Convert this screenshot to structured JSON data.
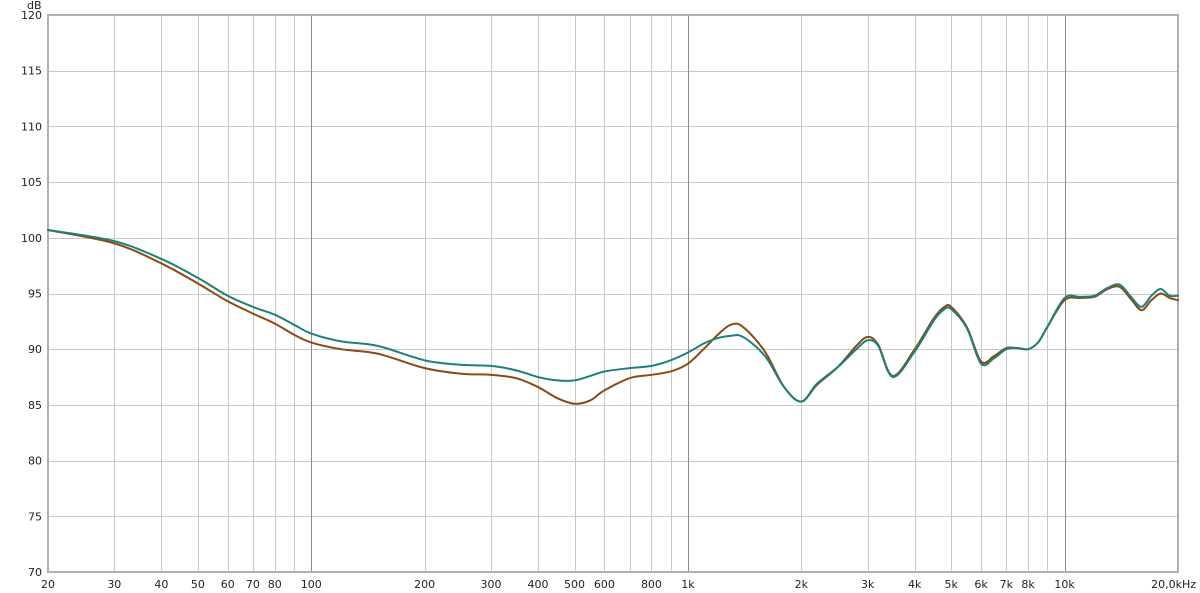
{
  "chart_data": {
    "type": "line",
    "title": "",
    "xlabel": "",
    "ylabel": "dB",
    "x_scale": "log",
    "xlim": [
      20,
      20000
    ],
    "ylim": [
      70,
      120
    ],
    "grid": true,
    "legend": "none",
    "y_ticks": [
      {
        "value": 70,
        "label": "70"
      },
      {
        "value": 75,
        "label": "75"
      },
      {
        "value": 80,
        "label": "80"
      },
      {
        "value": 85,
        "label": "85"
      },
      {
        "value": 90,
        "label": "90"
      },
      {
        "value": 95,
        "label": "95"
      },
      {
        "value": 100,
        "label": "100"
      },
      {
        "value": 105,
        "label": "105"
      },
      {
        "value": 110,
        "label": "110"
      },
      {
        "value": 115,
        "label": "115"
      },
      {
        "value": 120,
        "label": "120"
      }
    ],
    "x_ticks": [
      {
        "value": 20,
        "label": "20"
      },
      {
        "value": 30,
        "label": "30"
      },
      {
        "value": 40,
        "label": "40"
      },
      {
        "value": 50,
        "label": "50"
      },
      {
        "value": 60,
        "label": "60"
      },
      {
        "value": 70,
        "label": "70"
      },
      {
        "value": 80,
        "label": "80"
      },
      {
        "value": 100,
        "label": "100"
      },
      {
        "value": 200,
        "label": "200"
      },
      {
        "value": 300,
        "label": "300"
      },
      {
        "value": 400,
        "label": "400"
      },
      {
        "value": 500,
        "label": "500"
      },
      {
        "value": 600,
        "label": "600"
      },
      {
        "value": 800,
        "label": "800"
      },
      {
        "value": 1000,
        "label": "1k"
      },
      {
        "value": 2000,
        "label": "2k"
      },
      {
        "value": 3000,
        "label": "3k"
      },
      {
        "value": 4000,
        "label": "4k"
      },
      {
        "value": 5000,
        "label": "5k"
      },
      {
        "value": 6000,
        "label": "6k"
      },
      {
        "value": 7000,
        "label": "7k"
      },
      {
        "value": 8000,
        "label": "8k"
      },
      {
        "value": 10000,
        "label": "10k"
      },
      {
        "value": 20000,
        "label": "20,0kHz"
      }
    ],
    "minor_grid_x": [
      20,
      30,
      40,
      50,
      60,
      70,
      80,
      90,
      200,
      300,
      400,
      500,
      600,
      700,
      800,
      900,
      2000,
      3000,
      4000,
      5000,
      6000,
      7000,
      8000,
      9000,
      20000
    ],
    "major_grid_x": [
      100,
      1000,
      10000
    ],
    "series": [
      {
        "color": "#8b4a12",
        "x": [
          20,
          30,
          40,
          50,
          60,
          70,
          80,
          90,
          100,
          120,
          150,
          200,
          250,
          300,
          350,
          400,
          450,
          500,
          550,
          600,
          700,
          800,
          900,
          1000,
          1100,
          1200,
          1300,
          1400,
          1600,
          1800,
          2000,
          2200,
          2500,
          2800,
          3000,
          3200,
          3500,
          4000,
          4500,
          4800,
          5000,
          5500,
          6000,
          6500,
          7000,
          7500,
          8000,
          8500,
          9000,
          10000,
          11000,
          12000,
          13000,
          14000,
          15000,
          16000,
          17000,
          18000,
          19000,
          20000
        ],
        "y": [
          100.7,
          99.5,
          97.7,
          95.9,
          94.3,
          93.2,
          92.3,
          91.3,
          90.6,
          90.0,
          89.6,
          88.3,
          87.8,
          87.7,
          87.4,
          86.6,
          85.6,
          85.1,
          85.4,
          86.3,
          87.4,
          87.7,
          88.0,
          88.7,
          90.0,
          91.3,
          92.2,
          92.0,
          89.8,
          86.6,
          85.3,
          86.8,
          88.4,
          90.3,
          91.1,
          90.4,
          87.6,
          90.0,
          92.8,
          93.8,
          93.8,
          92.0,
          88.9,
          89.4,
          90.1,
          90.1,
          90.0,
          90.6,
          92.0,
          94.4,
          94.6,
          94.7,
          95.4,
          95.6,
          94.5,
          93.5,
          94.4,
          95.0,
          94.6,
          94.4
        ]
      },
      {
        "color": "#1f7f7a",
        "x": [
          20,
          30,
          40,
          50,
          60,
          70,
          80,
          90,
          100,
          120,
          150,
          200,
          250,
          300,
          350,
          400,
          450,
          500,
          550,
          600,
          700,
          800,
          900,
          1000,
          1100,
          1200,
          1300,
          1400,
          1600,
          1800,
          2000,
          2200,
          2500,
          2800,
          3000,
          3200,
          3500,
          4000,
          4500,
          4800,
          5000,
          5500,
          6000,
          6500,
          7000,
          7500,
          8000,
          8500,
          9000,
          10000,
          11000,
          12000,
          13000,
          14000,
          15000,
          16000,
          17000,
          18000,
          19000,
          20000
        ],
        "y": [
          100.7,
          99.7,
          98.1,
          96.4,
          94.8,
          93.8,
          93.1,
          92.2,
          91.4,
          90.7,
          90.3,
          89.0,
          88.6,
          88.5,
          88.1,
          87.5,
          87.2,
          87.2,
          87.6,
          88.0,
          88.3,
          88.5,
          89.0,
          89.7,
          90.5,
          91.0,
          91.2,
          91.1,
          89.4,
          86.6,
          85.3,
          86.9,
          88.4,
          90.0,
          90.8,
          90.3,
          87.5,
          89.8,
          92.6,
          93.6,
          93.6,
          91.9,
          88.7,
          89.2,
          90.0,
          90.1,
          90.0,
          90.6,
          92.0,
          94.6,
          94.7,
          94.8,
          95.5,
          95.8,
          94.7,
          93.8,
          94.8,
          95.4,
          94.8,
          94.8
        ]
      }
    ]
  }
}
